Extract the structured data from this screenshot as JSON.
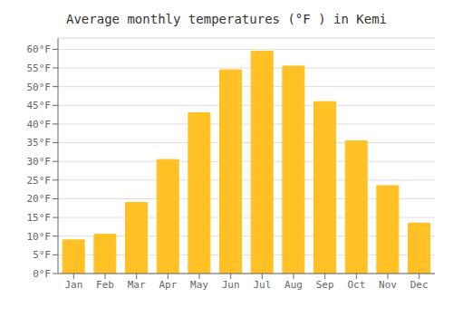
{
  "chart_data": {
    "type": "bar",
    "title": "Average monthly temperatures (°F ) in Kemi",
    "categories": [
      "Jan",
      "Feb",
      "Mar",
      "Apr",
      "May",
      "Jun",
      "Jul",
      "Aug",
      "Sep",
      "Oct",
      "Nov",
      "Dec"
    ],
    "values": [
      9,
      10.5,
      19,
      30.5,
      43,
      54.5,
      59.5,
      55.5,
      46,
      35.5,
      23.5,
      13.5
    ],
    "color": "#FFC125",
    "ylim": [
      0,
      63
    ],
    "yticks": [
      {
        "value": 0,
        "label": "0°F"
      },
      {
        "value": 5,
        "label": "5°F"
      },
      {
        "value": 10,
        "label": "10°F"
      },
      {
        "value": 15,
        "label": "15°F"
      },
      {
        "value": 20,
        "label": "20°F"
      },
      {
        "value": 25,
        "label": "25°F"
      },
      {
        "value": 30,
        "label": "30°F"
      },
      {
        "value": 35,
        "label": "35°F"
      },
      {
        "value": 40,
        "label": "40°F"
      },
      {
        "value": 45,
        "label": "45°F"
      },
      {
        "value": 50,
        "label": "50°F"
      },
      {
        "value": 55,
        "label": "55°F"
      },
      {
        "value": 60,
        "label": "60°F"
      }
    ],
    "grid": true
  }
}
